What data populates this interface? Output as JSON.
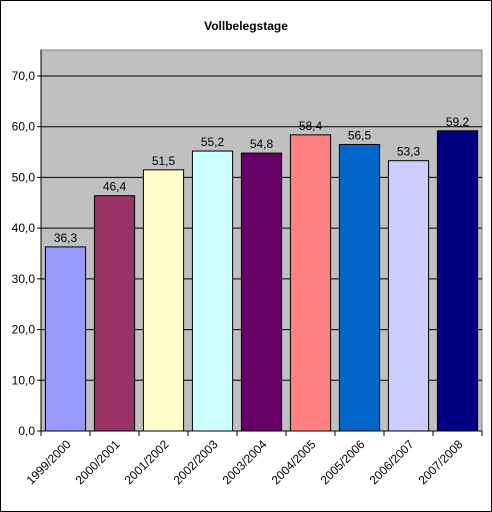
{
  "chart_data": {
    "type": "bar",
    "title": "Vollbelegstage",
    "xlabel": "",
    "ylabel": "",
    "categories": [
      "1999/2000",
      "2000/2001",
      "2001/2002",
      "2002/2003",
      "2003/2004",
      "2004/2005",
      "2005/2006",
      "2006/2007",
      "2007/2008"
    ],
    "values": [
      36.3,
      46.4,
      51.5,
      55.2,
      54.8,
      58.4,
      56.5,
      53.3,
      59.2
    ],
    "value_labels": [
      "36,3",
      "46,4",
      "51,5",
      "55,2",
      "54,8",
      "58,4",
      "56,5",
      "53,3",
      "59,2"
    ],
    "ylim": [
      0,
      70
    ],
    "yticks": [
      0,
      10,
      20,
      30,
      40,
      50,
      60,
      70
    ],
    "ytick_labels": [
      "0,0",
      "10,0",
      "20,0",
      "30,0",
      "40,0",
      "50,0",
      "60,0",
      "70,0"
    ],
    "grid": true,
    "plot_background": "#c0c0c0",
    "bar_colors": [
      "#9999ff",
      "#993366",
      "#ffffcc",
      "#ccffff",
      "#660066",
      "#ff8080",
      "#0066cc",
      "#ccccff",
      "#000080"
    ]
  }
}
